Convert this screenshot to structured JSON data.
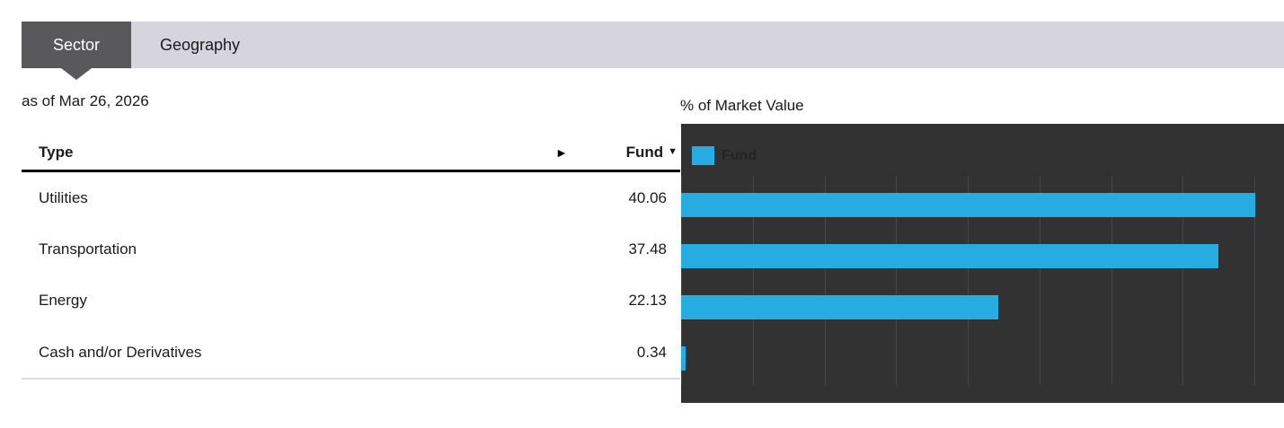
{
  "tabs": {
    "sector_label": "Sector",
    "geography_label": "Geography"
  },
  "as_of_label": "as of Mar 26, 2026",
  "table": {
    "header": {
      "type": "Type",
      "fund": "Fund",
      "sort_indicator": "▼",
      "scroll_arrow": "►"
    },
    "rows": [
      {
        "type": "Utilities",
        "fund": "40.06"
      },
      {
        "type": "Transportation",
        "fund": "37.48"
      },
      {
        "type": "Energy",
        "fund": "22.13"
      },
      {
        "type": "Cash and/or Derivatives",
        "fund": "0.34"
      }
    ]
  },
  "chart": {
    "title": "% of Market Value",
    "legend_label": "Fund"
  },
  "chart_data": {
    "type": "bar",
    "orientation": "horizontal",
    "title": "% of Market Value",
    "categories": [
      "Utilities",
      "Transportation",
      "Energy",
      "Cash and/or Derivatives"
    ],
    "series": [
      {
        "name": "Fund",
        "values": [
          40.06,
          37.48,
          22.13,
          0.34
        ]
      }
    ],
    "xlim": [
      0,
      42
    ],
    "gridline_max": 40,
    "gridline_interval": 5,
    "grid": true,
    "legend_position": "top-left",
    "bar_color": "#27ace2",
    "plot_background": "#323232",
    "gridline_color": "#464646"
  },
  "colors": {
    "accent_blue": "#27ace2",
    "tab_active_bg": "#59595b",
    "tab_bar_bg": "#d6d5dd",
    "chart_bg": "#323232",
    "text": "#1a1a1a"
  }
}
